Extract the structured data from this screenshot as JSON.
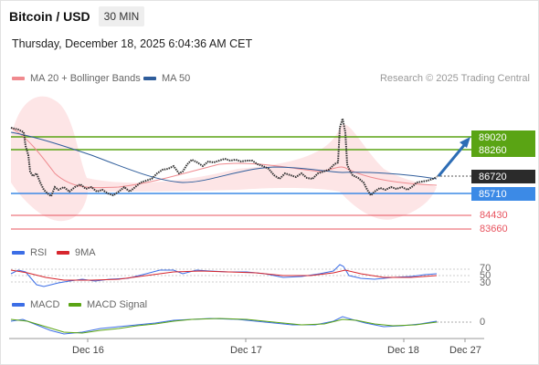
{
  "header": {
    "title": "Bitcoin / USD",
    "timeframe": "30 MIN",
    "datetime": "Thursday, December 18, 2025 6:04:36 AM CET"
  },
  "legend": {
    "bollinger": "MA 20 + Bollinger Bands",
    "ma50": "MA 50",
    "credit": "Research © 2025 Trading Central"
  },
  "levels": {
    "r2": "89020",
    "r1": "88260",
    "last": "86720",
    "s1": "85710",
    "s2": "84430",
    "s3": "83660"
  },
  "rsi_panel": {
    "rsi_label": "RSI",
    "ma_label": "9MA",
    "levels": [
      "70",
      "50",
      "30"
    ]
  },
  "macd_panel": {
    "macd_label": "MACD",
    "signal_label": "MACD Signal",
    "zero": "0"
  },
  "x_axis": {
    "labels": [
      "Dec 16",
      "Dec 17",
      "Dec 18",
      "Dec 27"
    ]
  },
  "colors": {
    "green": "#5aa414",
    "blue": "#3c8ae6",
    "red": "#e8545f",
    "dark": "#2b2b2b",
    "bollinger": "#f4b5b8",
    "ma50": "#2f5d9b",
    "arrow": "#2d6db5"
  }
}
